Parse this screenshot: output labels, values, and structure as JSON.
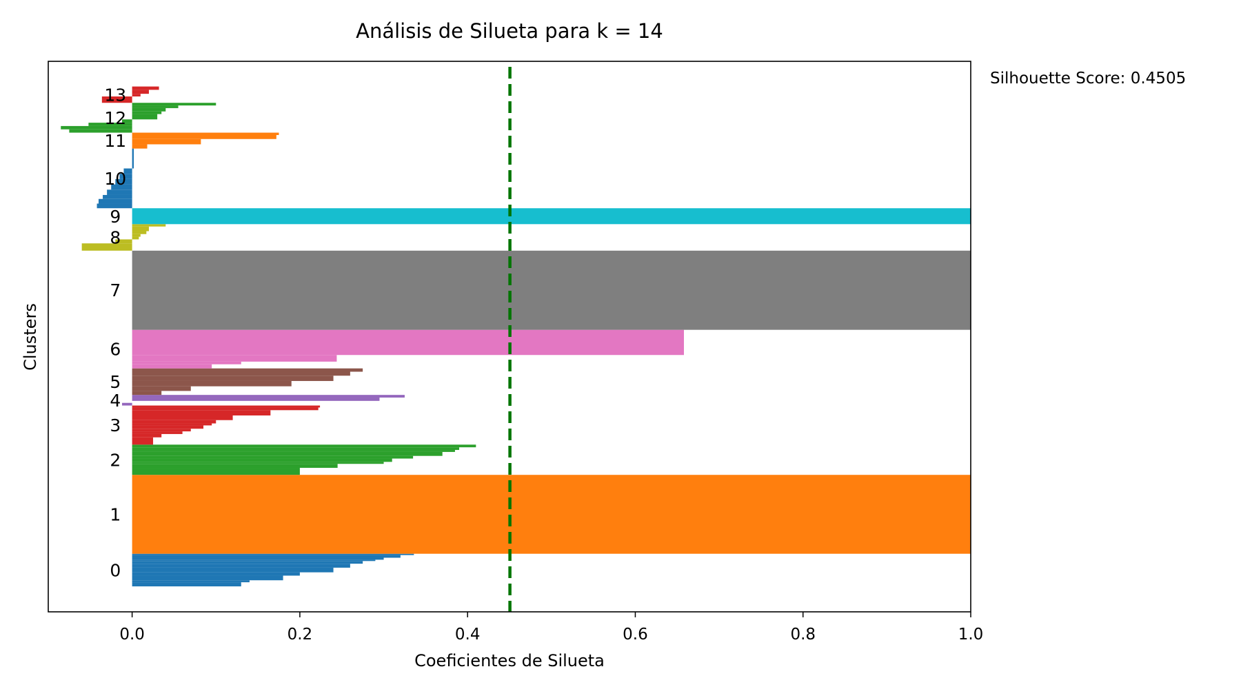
{
  "chart_data": {
    "type": "bar",
    "orientation": "horizontal",
    "title": "Análisis de Silueta para k = 14",
    "xlabel": "Coeficientes de Silueta",
    "ylabel": "Clusters",
    "xlim": [
      -0.1,
      1.0
    ],
    "ylim": [
      0,
      4152
    ],
    "xticks": [
      "0.0",
      "0.2",
      "0.4",
      "0.6",
      "0.8",
      "1.0"
    ],
    "xtick_values": [
      0.0,
      0.2,
      0.4,
      0.6,
      0.8,
      1.0
    ],
    "grid": false,
    "reference_line": {
      "x": 0.4505,
      "color": "#007500",
      "style": "dashed"
    },
    "annotation": "Silhouette Score: 0.4505",
    "clusters": [
      {
        "label": "0",
        "color": "#1f77b4",
        "y_lower": 192,
        "y_upper": 438,
        "steps": [
          [
            0.336,
            10
          ],
          [
            0.32,
            20
          ],
          [
            0.3,
            15
          ],
          [
            0.29,
            10
          ],
          [
            0.275,
            20
          ],
          [
            0.26,
            30
          ],
          [
            0.24,
            35
          ],
          [
            0.2,
            25
          ],
          [
            0.18,
            35
          ],
          [
            0.14,
            15
          ],
          [
            0.13,
            31
          ]
        ]
      },
      {
        "label": "1",
        "color": "#ff7f0e",
        "y_lower": 438,
        "y_upper": 1033,
        "steps": [
          [
            1.0,
            595
          ]
        ]
      },
      {
        "label": "2",
        "color": "#2ca02c",
        "y_lower": 1033,
        "y_upper": 1261,
        "steps": [
          [
            0.41,
            20
          ],
          [
            0.39,
            20
          ],
          [
            0.385,
            15
          ],
          [
            0.37,
            30
          ],
          [
            0.335,
            20
          ],
          [
            0.31,
            25
          ],
          [
            0.3,
            15
          ],
          [
            0.245,
            30
          ],
          [
            0.2,
            53
          ]
        ]
      },
      {
        "label": "3",
        "color": "#d62728",
        "y_lower": 1261,
        "y_upper": 1556,
        "steps": [
          [
            0.224,
            15
          ],
          [
            0.222,
            20
          ],
          [
            0.165,
            40
          ],
          [
            0.12,
            35
          ],
          [
            0.1,
            25
          ],
          [
            0.095,
            15
          ],
          [
            0.085,
            25
          ],
          [
            0.07,
            20
          ],
          [
            0.06,
            20
          ],
          [
            0.035,
            25
          ],
          [
            0.025,
            55
          ]
        ]
      },
      {
        "label": "4",
        "color": "#9467bd",
        "y_lower": 1556,
        "y_upper": 1636,
        "steps": [
          [
            0.325,
            20
          ],
          [
            0.295,
            25
          ],
          [
            0.0,
            15
          ],
          [
            -0.012,
            20
          ]
        ]
      },
      {
        "label": "5",
        "color": "#8c564b",
        "y_lower": 1636,
        "y_upper": 1836,
        "steps": [
          [
            0.275,
            25
          ],
          [
            0.26,
            30
          ],
          [
            0.24,
            40
          ],
          [
            0.19,
            40
          ],
          [
            0.07,
            35
          ],
          [
            0.035,
            30
          ]
        ]
      },
      {
        "label": "6",
        "color": "#e377c2",
        "y_lower": 1836,
        "y_upper": 2127,
        "steps": [
          [
            0.658,
            190
          ],
          [
            0.244,
            50
          ],
          [
            0.13,
            20
          ],
          [
            0.095,
            31
          ]
        ]
      },
      {
        "label": "7",
        "color": "#7f7f7f",
        "y_lower": 2127,
        "y_upper": 2724,
        "steps": [
          [
            1.0,
            597
          ]
        ]
      },
      {
        "label": "8",
        "color": "#bcbd22",
        "y_lower": 2724,
        "y_upper": 2924,
        "steps": [
          [
            0.04,
            18
          ],
          [
            0.02,
            35
          ],
          [
            0.017,
            22
          ],
          [
            0.01,
            20
          ],
          [
            0.008,
            20
          ],
          [
            -0.02,
            30
          ],
          [
            -0.06,
            55
          ]
        ]
      },
      {
        "label": "9",
        "color": "#17becf",
        "y_lower": 2924,
        "y_upper": 3044,
        "steps": [
          [
            1.0,
            120
          ]
        ]
      },
      {
        "label": "10",
        "color": "#1f77b4",
        "y_lower": 3044,
        "y_upper": 3494,
        "steps": [
          [
            0.002,
            150
          ],
          [
            -0.01,
            40
          ],
          [
            -0.015,
            40
          ],
          [
            -0.02,
            40
          ],
          [
            -0.025,
            40
          ],
          [
            -0.03,
            40
          ],
          [
            -0.035,
            30
          ],
          [
            -0.04,
            35
          ],
          [
            -0.042,
            35
          ]
        ]
      },
      {
        "label": "11",
        "color": "#ff7f0e",
        "y_lower": 3494,
        "y_upper": 3614,
        "steps": [
          [
            0.175,
            18
          ],
          [
            0.172,
            30
          ],
          [
            0.082,
            40
          ],
          [
            0.018,
            32
          ]
        ]
      },
      {
        "label": "12",
        "color": "#2ca02c",
        "y_lower": 3614,
        "y_upper": 3839,
        "steps": [
          [
            0.1,
            20
          ],
          [
            0.055,
            20
          ],
          [
            0.04,
            25
          ],
          [
            0.035,
            20
          ],
          [
            0.03,
            40
          ],
          [
            -0.012,
            25
          ],
          [
            -0.052,
            25
          ],
          [
            -0.085,
            25
          ],
          [
            -0.075,
            25
          ]
        ]
      },
      {
        "label": "13",
        "color": "#d62728",
        "y_lower": 3839,
        "y_upper": 3962,
        "steps": [
          [
            0.032,
            25
          ],
          [
            0.02,
            30
          ],
          [
            0.01,
            20
          ],
          [
            -0.036,
            48
          ]
        ]
      }
    ]
  }
}
